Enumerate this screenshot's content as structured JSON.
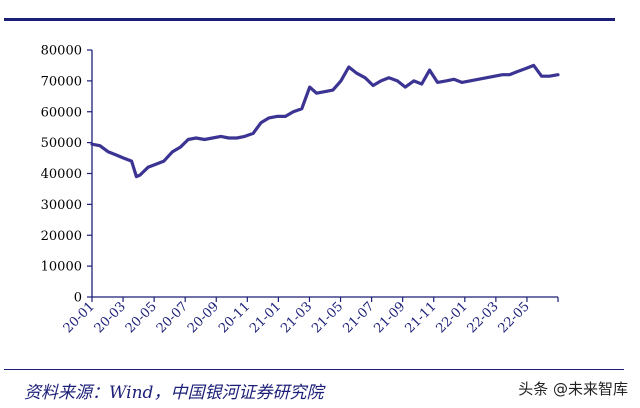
{
  "chart_data": {
    "type": "line",
    "title": "",
    "xlabel": "",
    "ylabel": "",
    "ylim": [
      0,
      80000
    ],
    "yticks": [
      0,
      10000,
      20000,
      30000,
      40000,
      50000,
      60000,
      70000,
      80000
    ],
    "x_tick_labels": [
      "20-01",
      "20-03",
      "20-05",
      "20-07",
      "20-09",
      "20-11",
      "21-01",
      "21-03",
      "21-05",
      "21-07",
      "21-09",
      "21-11",
      "22-01",
      "22-03",
      "22-05"
    ],
    "grid": false,
    "line_color": "#3c3493",
    "axis_color": "#1c1f78",
    "x": [
      "2020-01-01",
      "2020-01-16",
      "2020-02-01",
      "2020-02-16",
      "2020-03-01",
      "2020-03-16",
      "2020-03-25",
      "2020-04-01",
      "2020-04-16",
      "2020-05-01",
      "2020-05-16",
      "2020-06-01",
      "2020-06-16",
      "2020-07-01",
      "2020-07-16",
      "2020-08-01",
      "2020-08-16",
      "2020-09-01",
      "2020-09-16",
      "2020-10-01",
      "2020-10-16",
      "2020-11-01",
      "2020-11-16",
      "2020-12-01",
      "2020-12-16",
      "2021-01-01",
      "2021-01-16",
      "2021-02-01",
      "2021-02-16",
      "2021-03-01",
      "2021-03-16",
      "2021-04-01",
      "2021-04-16",
      "2021-05-01",
      "2021-05-16",
      "2021-06-01",
      "2021-06-16",
      "2021-07-01",
      "2021-07-16",
      "2021-08-01",
      "2021-08-16",
      "2021-09-01",
      "2021-09-16",
      "2021-10-01",
      "2021-10-16",
      "2021-11-01",
      "2021-11-16",
      "2021-12-01",
      "2021-12-16",
      "2022-01-01",
      "2022-01-16",
      "2022-02-01",
      "2022-02-16",
      "2022-03-01",
      "2022-03-16",
      "2022-04-01",
      "2022-04-16",
      "2022-05-01",
      "2022-05-16",
      "2022-06-01"
    ],
    "series": [
      {
        "values": [
          49500,
          49000,
          47000,
          46000,
          45000,
          44000,
          39000,
          39500,
          42000,
          43000,
          44000,
          47000,
          48500,
          51000,
          51500,
          51000,
          51500,
          52000,
          51500,
          51500,
          52000,
          53000,
          56500,
          58000,
          58500,
          58500,
          60000,
          61000,
          68000,
          66000,
          66500,
          67000,
          70000,
          74500,
          72500,
          71000,
          68500,
          70000,
          71000,
          70000,
          68000,
          70000,
          69000,
          73500,
          69500,
          70000,
          70500,
          69500,
          70000,
          70500,
          71000,
          71500,
          72000,
          72000,
          73000,
          74000,
          75000,
          71500,
          71500,
          72000
        ]
      }
    ]
  },
  "footer": {
    "source": "资料来源：Wind，中国银河证券研究院",
    "watermark": "头条 @未来智库"
  }
}
